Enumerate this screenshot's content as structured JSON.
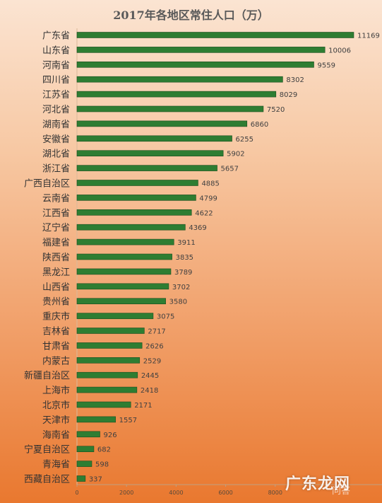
{
  "chart_data": {
    "type": "bar",
    "orientation": "horizontal",
    "title": "2017年各地区常住人口（万）",
    "categories": [
      "广东省",
      "山东省",
      "河南省",
      "四川省",
      "江苏省",
      "河北省",
      "湖南省",
      "安徽省",
      "湖北省",
      "浙江省",
      "广西自治区",
      "云南省",
      "江西省",
      "辽宁省",
      "福建省",
      "陕西省",
      "黑龙江",
      "山西省",
      "贵州省",
      "重庆市",
      "吉林省",
      "甘肃省",
      "内蒙古",
      "新疆自治区",
      "上海市",
      "北京市",
      "天津市",
      "海南省",
      "宁夏自治区",
      "青海省",
      "西藏自治区"
    ],
    "values": [
      11169,
      10006,
      9559,
      8302,
      8029,
      7520,
      6860,
      6255,
      5902,
      5657,
      4885,
      4799,
      4622,
      4369,
      3911,
      3835,
      3789,
      3702,
      3580,
      3075,
      2717,
      2626,
      2529,
      2445,
      2418,
      2171,
      1557,
      926,
      682,
      598,
      337
    ],
    "xticks": [
      0,
      2000,
      4000,
      6000,
      8000
    ],
    "xlim": [
      0,
      12000
    ],
    "bar_color": "#2e7d32",
    "data_labels": true,
    "grid": false,
    "legend": "none"
  },
  "watermark": {
    "text": "广东龙网",
    "sub": "问答"
  }
}
